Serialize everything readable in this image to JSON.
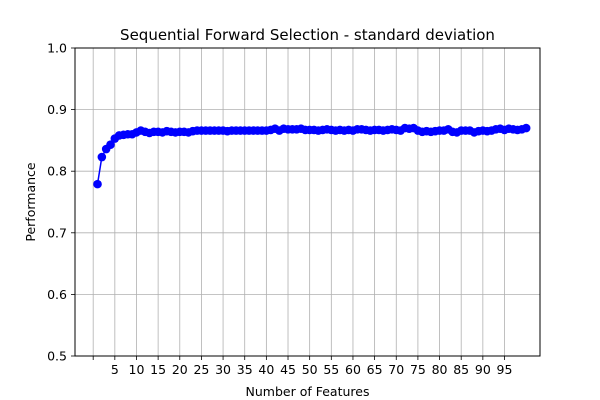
{
  "chart_data": {
    "type": "line",
    "title": "Sequential Forward Selection - standard deviation",
    "xlabel": "Number of Features",
    "ylabel": "Performance",
    "xlim": [
      -4.2,
      103.2
    ],
    "ylim": [
      0.5,
      1.0
    ],
    "xticks": [
      0,
      5,
      10,
      15,
      20,
      25,
      30,
      35,
      40,
      45,
      50,
      55,
      60,
      65,
      70,
      75,
      80,
      85,
      90,
      95
    ],
    "xtick_labels": [
      "",
      "5",
      "10",
      "15",
      "20",
      "25",
      "30",
      "35",
      "40",
      "45",
      "50",
      "55",
      "60",
      "65",
      "70",
      "75",
      "80",
      "85",
      "90",
      "95"
    ],
    "yticks": [
      0.5,
      0.6,
      0.7,
      0.8,
      0.9,
      1.0
    ],
    "ytick_labels": [
      "0.5",
      "0.6",
      "0.7",
      "0.8",
      "0.9",
      "1.0"
    ],
    "grid": true,
    "legend": "none",
    "colors": {
      "series": "#0000ff",
      "grid": "#b0b0b0",
      "axis": "#000000"
    },
    "series": [
      {
        "marker": "circle",
        "x": [
          1,
          2,
          3,
          4,
          5,
          6,
          7,
          8,
          9,
          10,
          11,
          12,
          13,
          14,
          15,
          16,
          17,
          18,
          19,
          20,
          21,
          22,
          23,
          24,
          25,
          26,
          27,
          28,
          29,
          30,
          31,
          32,
          33,
          34,
          35,
          36,
          37,
          38,
          39,
          40,
          41,
          42,
          43,
          44,
          45,
          46,
          47,
          48,
          49,
          50,
          51,
          52,
          53,
          54,
          55,
          56,
          57,
          58,
          59,
          60,
          61,
          62,
          63,
          64,
          65,
          66,
          67,
          68,
          69,
          70,
          71,
          72,
          73,
          74,
          75,
          76,
          77,
          78,
          79,
          80,
          81,
          82,
          83,
          84,
          85,
          86,
          87,
          88,
          89,
          90,
          91,
          92,
          93,
          94,
          95,
          96,
          97,
          98,
          99,
          100
        ],
        "y": [
          0.779,
          0.823,
          0.836,
          0.843,
          0.853,
          0.858,
          0.859,
          0.86,
          0.86,
          0.863,
          0.866,
          0.864,
          0.862,
          0.864,
          0.864,
          0.863,
          0.865,
          0.864,
          0.863,
          0.864,
          0.864,
          0.863,
          0.865,
          0.866,
          0.866,
          0.866,
          0.866,
          0.866,
          0.866,
          0.866,
          0.865,
          0.866,
          0.866,
          0.866,
          0.866,
          0.866,
          0.866,
          0.866,
          0.866,
          0.866,
          0.867,
          0.869,
          0.866,
          0.869,
          0.868,
          0.868,
          0.868,
          0.869,
          0.867,
          0.867,
          0.867,
          0.866,
          0.867,
          0.868,
          0.867,
          0.866,
          0.867,
          0.866,
          0.867,
          0.866,
          0.868,
          0.868,
          0.867,
          0.866,
          0.867,
          0.867,
          0.866,
          0.867,
          0.868,
          0.867,
          0.866,
          0.87,
          0.869,
          0.87,
          0.866,
          0.864,
          0.865,
          0.864,
          0.865,
          0.866,
          0.866,
          0.868,
          0.864,
          0.863,
          0.866,
          0.866,
          0.866,
          0.863,
          0.865,
          0.866,
          0.865,
          0.866,
          0.868,
          0.869,
          0.867,
          0.869,
          0.868,
          0.867,
          0.868,
          0.87
        ]
      }
    ]
  }
}
